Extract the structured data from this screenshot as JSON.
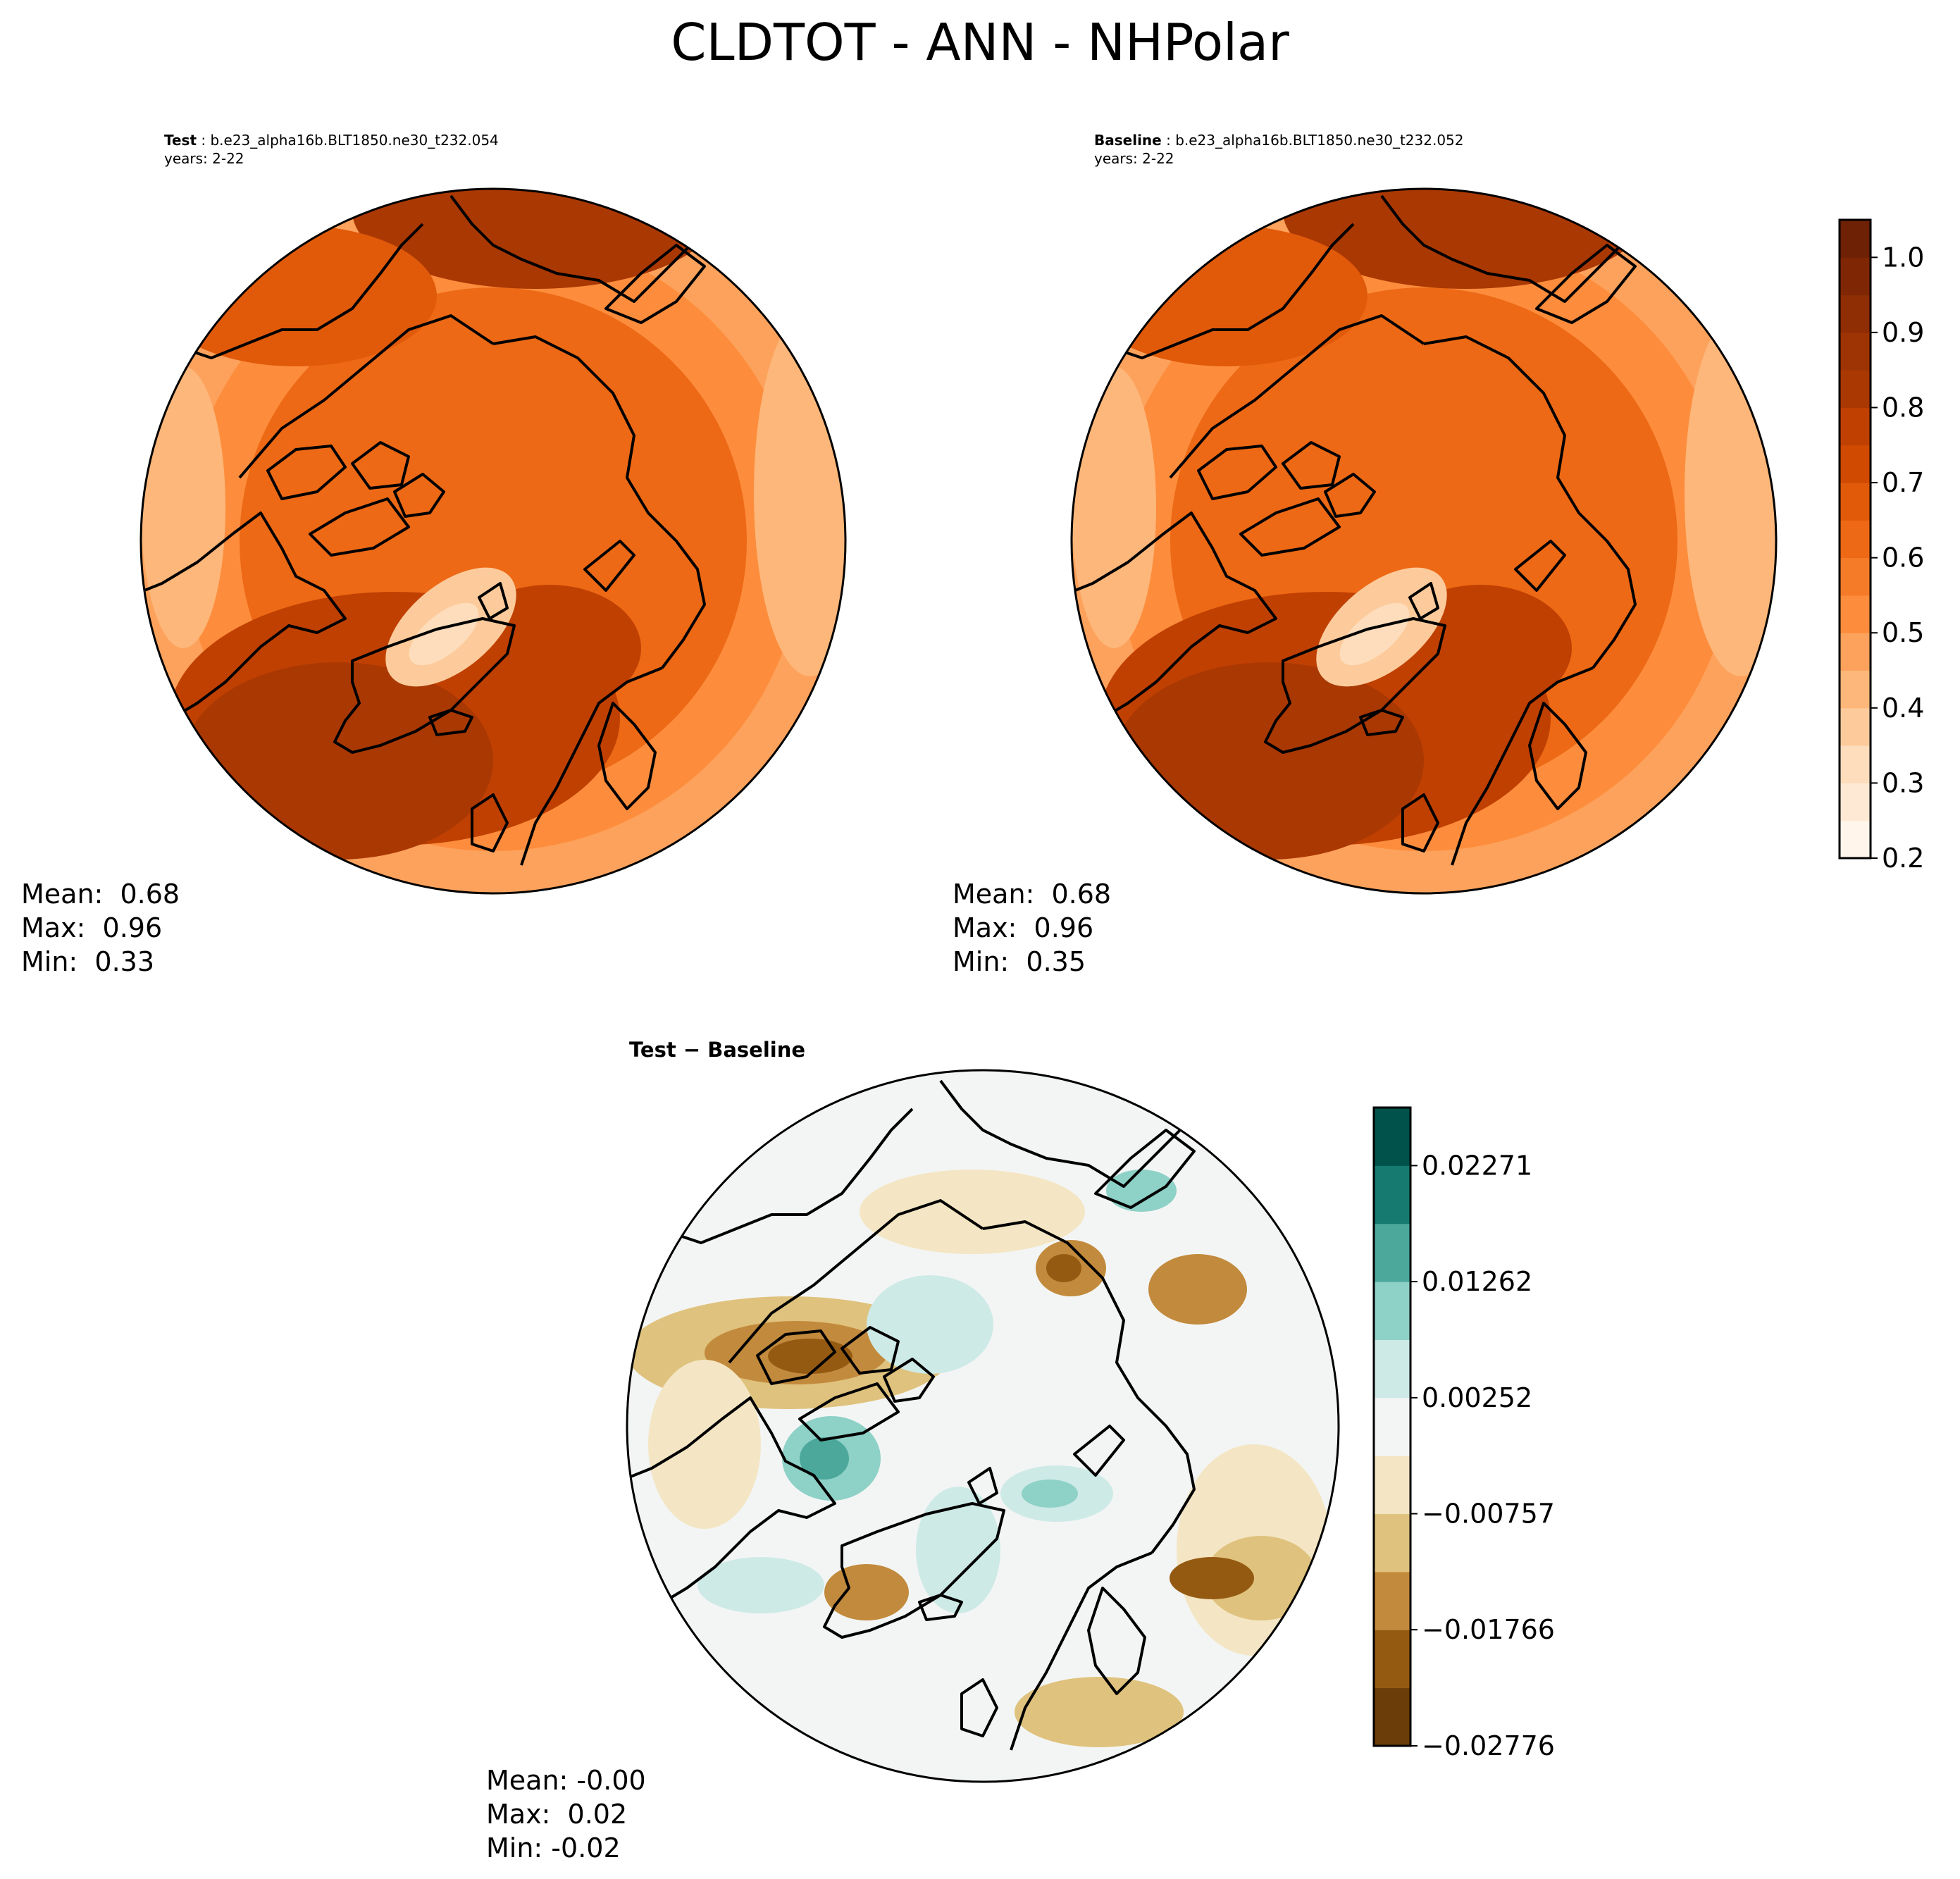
{
  "figure": {
    "title": "CLDTOT - ANN - NHPolar"
  },
  "test_panel": {
    "label": "Test",
    "case": "b.e23_alpha16b.BLT1850.ne30_t232.054",
    "years": "years: 2-22",
    "stats": {
      "mean": "Mean:  0.68",
      "max": "Max:  0.96",
      "min": "Min:  0.33"
    }
  },
  "baseline_panel": {
    "label": "Baseline",
    "case": "b.e23_alpha16b.BLT1850.ne30_t232.052",
    "years": "years: 2-22",
    "stats": {
      "mean": "Mean:  0.68",
      "max": "Max:  0.96",
      "min": "Min:  0.35"
    }
  },
  "diff_panel": {
    "title": "Test − Baseline",
    "stats": {
      "mean": "Mean: -0.00",
      "max": "Max:  0.02",
      "min": "Min: -0.02"
    }
  },
  "colorbar_main": {
    "colormap": "Oranges",
    "range": [
      0.2,
      1.05
    ],
    "levels": 17,
    "ticks": [
      "0.2",
      "0.3",
      "0.4",
      "0.5",
      "0.6",
      "0.7",
      "0.8",
      "0.9",
      "1.0"
    ],
    "colors": [
      "#fff5eb",
      "#fee9d4",
      "#fdddbc",
      "#fdcb9b",
      "#fdb77a",
      "#fda25c",
      "#fd8d3c",
      "#f57b28",
      "#ed6915",
      "#e05a0a",
      "#d04a02",
      "#c04002",
      "#aa3803",
      "#9e3303",
      "#8f2d04",
      "#7f2704",
      "#6e2104"
    ]
  },
  "colorbar_diff": {
    "colormap": "BrBG",
    "range": [
      -0.02776,
      0.02776
    ],
    "levels": 11,
    "ticks": [
      "−0.02776",
      "−0.01766",
      "−0.00757",
      "0.00252",
      "0.01262",
      "0.02271"
    ],
    "colors": [
      "#6b3d08",
      "#955a12",
      "#c28a3c",
      "#dfc27d",
      "#f4e6c4",
      "#f3f5f4",
      "#cdeae6",
      "#8ed1c7",
      "#4ba89b",
      "#167a70",
      "#00524a"
    ]
  }
}
